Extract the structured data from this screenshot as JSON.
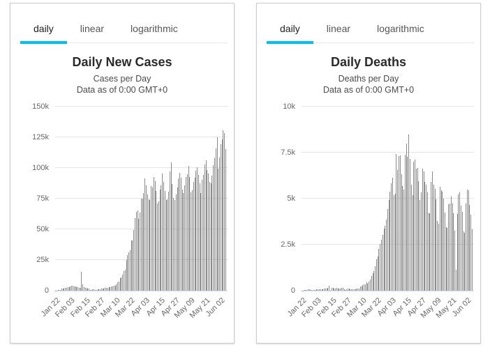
{
  "colors": {
    "accent": "#00c0ef",
    "bar": "#8a8a8a",
    "grid": "#e6e6e6",
    "axis_line": "#ccd6eb",
    "axis_label": "#666666",
    "tab_text": "#555555",
    "tab_active_text": "#1d1d1d"
  },
  "panels": [
    {
      "id": "daily-cases",
      "tabs": [
        {
          "label": "daily",
          "active": true
        },
        {
          "label": "linear",
          "active": false
        },
        {
          "label": "logarithmic",
          "active": false
        }
      ]
    },
    {
      "id": "daily-deaths",
      "tabs": [
        {
          "label": "daily",
          "active": true
        },
        {
          "label": "linear",
          "active": false
        },
        {
          "label": "logarithmic",
          "active": false
        }
      ]
    }
  ],
  "chart_data": [
    {
      "type": "bar",
      "title": "Daily New Cases",
      "subtitle": "Cases per Day",
      "note": "Data as of 0:00 GMT+0",
      "ylim": [
        0,
        150000
      ],
      "grid": true,
      "legend": false,
      "yticks": [
        {
          "v": 0,
          "label": "0"
        },
        {
          "v": 25000,
          "label": "25k"
        },
        {
          "v": 50000,
          "label": "50k"
        },
        {
          "v": 75000,
          "label": "75k"
        },
        {
          "v": 100000,
          "label": "100k"
        },
        {
          "v": 125000,
          "label": "125k"
        },
        {
          "v": 150000,
          "label": "150k"
        }
      ],
      "xticks": [
        "Jan 22",
        "Feb 03",
        "Feb 15",
        "Feb 27",
        "Mar 10",
        "Mar 22",
        "Apr 03",
        "Apr 15",
        "Apr 27",
        "May 09",
        "May 21",
        "Jun 02"
      ],
      "xtick_every": 12,
      "categories": [
        "Jan 22",
        "Jan 23",
        "Jan 24",
        "Jan 25",
        "Jan 26",
        "Jan 27",
        "Jan 28",
        "Jan 29",
        "Jan 30",
        "Jan 31",
        "Feb 01",
        "Feb 02",
        "Feb 03",
        "Feb 04",
        "Feb 05",
        "Feb 06",
        "Feb 07",
        "Feb 08",
        "Feb 09",
        "Feb 10",
        "Feb 11",
        "Feb 12",
        "Feb 13",
        "Feb 14",
        "Feb 15",
        "Feb 16",
        "Feb 17",
        "Feb 18",
        "Feb 19",
        "Feb 20",
        "Feb 21",
        "Feb 22",
        "Feb 23",
        "Feb 24",
        "Feb 25",
        "Feb 26",
        "Feb 27",
        "Feb 28",
        "Feb 29",
        "Mar 01",
        "Mar 02",
        "Mar 03",
        "Mar 04",
        "Mar 05",
        "Mar 06",
        "Mar 07",
        "Mar 08",
        "Mar 09",
        "Mar 10",
        "Mar 11",
        "Mar 12",
        "Mar 13",
        "Mar 14",
        "Mar 15",
        "Mar 16",
        "Mar 17",
        "Mar 18",
        "Mar 19",
        "Mar 20",
        "Mar 21",
        "Mar 22",
        "Mar 23",
        "Mar 24",
        "Mar 25",
        "Mar 26",
        "Mar 27",
        "Mar 28",
        "Mar 29",
        "Mar 30",
        "Mar 31",
        "Apr 01",
        "Apr 02",
        "Apr 03",
        "Apr 04",
        "Apr 05",
        "Apr 06",
        "Apr 07",
        "Apr 08",
        "Apr 09",
        "Apr 10",
        "Apr 11",
        "Apr 12",
        "Apr 13",
        "Apr 14",
        "Apr 15",
        "Apr 16",
        "Apr 17",
        "Apr 18",
        "Apr 19",
        "Apr 20",
        "Apr 21",
        "Apr 22",
        "Apr 23",
        "Apr 24",
        "Apr 25",
        "Apr 26",
        "Apr 27",
        "Apr 28",
        "Apr 29",
        "Apr 30",
        "May 01",
        "May 02",
        "May 03",
        "May 04",
        "May 05",
        "May 06",
        "May 07",
        "May 08",
        "May 09",
        "May 10",
        "May 11",
        "May 12",
        "May 13",
        "May 14",
        "May 15",
        "May 16",
        "May 17",
        "May 18",
        "May 19",
        "May 20",
        "May 21",
        "May 22",
        "May 23",
        "May 24",
        "May 25",
        "May 26",
        "May 27",
        "May 28",
        "May 29",
        "May 30",
        "May 31",
        "Jun 01",
        "Jun 02",
        "Jun 03",
        "Jun 04",
        "Jun 05",
        "Jun 06",
        "Jun 07"
      ],
      "values": [
        100,
        265,
        470,
        700,
        790,
        1780,
        1480,
        1760,
        2115,
        2100,
        2600,
        2830,
        3240,
        3930,
        3730,
        3160,
        3440,
        2680,
        3010,
        2560,
        2030,
        15150,
        5090,
        2640,
        2150,
        2080,
        1890,
        1750,
        520,
        630,
        890,
        1010,
        650,
        780,
        910,
        1130,
        1350,
        1430,
        1800,
        1760,
        2010,
        2410,
        2270,
        2760,
        3070,
        3400,
        3610,
        3890,
        4240,
        5140,
        6750,
        7450,
        10030,
        10970,
        13080,
        15640,
        17000,
        24900,
        29000,
        31000,
        32800,
        40800,
        41200,
        49200,
        59300,
        64000,
        65200,
        58600,
        63700,
        75100,
        74800,
        79700,
        91500,
        85700,
        78600,
        74300,
        73600,
        85200,
        84100,
        92800,
        89400,
        81000,
        71100,
        72600,
        82200,
        85800,
        95400,
        88600,
        81100,
        73900,
        74200,
        80700,
        97300,
        104400,
        86800,
        75500,
        74100,
        78300,
        84300,
        91400,
        95900,
        92100,
        82300,
        79500,
        85800,
        92900,
        95100,
        101600,
        92600,
        80100,
        81900,
        88400,
        92000,
        97700,
        100600,
        94400,
        87500,
        79800,
        90100,
        94200,
        102900,
        106300,
        98400,
        95600,
        88700,
        87400,
        93700,
        102200,
        107900,
        116100,
        124800,
        99400,
        108800,
        119200,
        123500,
        130800,
        128400,
        115300
      ]
    },
    {
      "type": "bar",
      "title": "Daily Deaths",
      "subtitle": "Deaths per Day",
      "note": "Data as of 0:00 GMT+0",
      "ylim": [
        0,
        10000
      ],
      "grid": true,
      "legend": false,
      "yticks": [
        {
          "v": 0,
          "label": "0"
        },
        {
          "v": 2500,
          "label": "2.5k"
        },
        {
          "v": 5000,
          "label": "5k"
        },
        {
          "v": 7500,
          "label": "7.5k"
        },
        {
          "v": 10000,
          "label": "10k"
        }
      ],
      "xticks": [
        "Jan 22",
        "Feb 03",
        "Feb 15",
        "Feb 27",
        "Mar 10",
        "Mar 22",
        "Apr 03",
        "Apr 15",
        "Apr 27",
        "May 09",
        "May 21",
        "Jun 02"
      ],
      "xtick_every": 12,
      "categories": [
        "Jan 22",
        "Jan 23",
        "Jan 24",
        "Jan 25",
        "Jan 26",
        "Jan 27",
        "Jan 28",
        "Jan 29",
        "Jan 30",
        "Jan 31",
        "Feb 01",
        "Feb 02",
        "Feb 03",
        "Feb 04",
        "Feb 05",
        "Feb 06",
        "Feb 07",
        "Feb 08",
        "Feb 09",
        "Feb 10",
        "Feb 11",
        "Feb 12",
        "Feb 13",
        "Feb 14",
        "Feb 15",
        "Feb 16",
        "Feb 17",
        "Feb 18",
        "Feb 19",
        "Feb 20",
        "Feb 21",
        "Feb 22",
        "Feb 23",
        "Feb 24",
        "Feb 25",
        "Feb 26",
        "Feb 27",
        "Feb 28",
        "Feb 29",
        "Mar 01",
        "Mar 02",
        "Mar 03",
        "Mar 04",
        "Mar 05",
        "Mar 06",
        "Mar 07",
        "Mar 08",
        "Mar 09",
        "Mar 10",
        "Mar 11",
        "Mar 12",
        "Mar 13",
        "Mar 14",
        "Mar 15",
        "Mar 16",
        "Mar 17",
        "Mar 18",
        "Mar 19",
        "Mar 20",
        "Mar 21",
        "Mar 22",
        "Mar 23",
        "Mar 24",
        "Mar 25",
        "Mar 26",
        "Mar 27",
        "Mar 28",
        "Mar 29",
        "Mar 30",
        "Mar 31",
        "Apr 01",
        "Apr 02",
        "Apr 03",
        "Apr 04",
        "Apr 05",
        "Apr 06",
        "Apr 07",
        "Apr 08",
        "Apr 09",
        "Apr 10",
        "Apr 11",
        "Apr 12",
        "Apr 13",
        "Apr 14",
        "Apr 15",
        "Apr 16",
        "Apr 17",
        "Apr 18",
        "Apr 19",
        "Apr 20",
        "Apr 21",
        "Apr 22",
        "Apr 23",
        "Apr 24",
        "Apr 25",
        "Apr 26",
        "Apr 27",
        "Apr 28",
        "Apr 29",
        "Apr 30",
        "May 01",
        "May 02",
        "May 03",
        "May 04",
        "May 05",
        "May 06",
        "May 07",
        "May 08",
        "May 09",
        "May 10",
        "May 11",
        "May 12",
        "May 13",
        "May 14",
        "May 15",
        "May 16",
        "May 17",
        "May 18",
        "May 19",
        "May 20",
        "May 21",
        "May 22",
        "May 23",
        "May 24",
        "May 25",
        "May 26",
        "May 27",
        "May 28",
        "May 29",
        "May 30",
        "May 31",
        "Jun 01",
        "Jun 02",
        "Jun 03",
        "Jun 04",
        "Jun 05",
        "Jun 06",
        "Jun 07"
      ],
      "values": [
        17,
        18,
        26,
        42,
        56,
        65,
        66,
        38,
        43,
        46,
        46,
        57,
        65,
        66,
        73,
        73,
        86,
        89,
        97,
        108,
        97,
        146,
        254,
        13,
        144,
        142,
        106,
        98,
        139,
        118,
        109,
        112,
        150,
        160,
        71,
        52,
        62,
        97,
        106,
        58,
        67,
        84,
        80,
        89,
        102,
        98,
        131,
        222,
        244,
        297,
        335,
        351,
        438,
        368,
        502,
        610,
        795,
        963,
        1059,
        1344,
        1690,
        1854,
        2281,
        2541,
        2779,
        3028,
        3383,
        3508,
        3879,
        4414,
        4922,
        5396,
        5838,
        6149,
        5206,
        5276,
        7412,
        6565,
        7317,
        7365,
        6328,
        5672,
        5491,
        7384,
        8011,
        7280,
        8480,
        7148,
        5751,
        5206,
        6998,
        7105,
        6640,
        6661,
        5951,
        4938,
        5331,
        6634,
        6473,
        5912,
        5760,
        5339,
        4194,
        4212,
        5927,
        6478,
        5740,
        5534,
        4967,
        3790,
        3640,
        5640,
        5440,
        5364,
        5013,
        4239,
        3457,
        3397,
        4684,
        4730,
        5098,
        4726,
        4196,
        3255,
        1140,
        4155,
        5238,
        5334,
        4617,
        4281,
        3219,
        3150,
        4720,
        5509,
        5441,
        4654,
        4134,
        3341
      ]
    }
  ]
}
